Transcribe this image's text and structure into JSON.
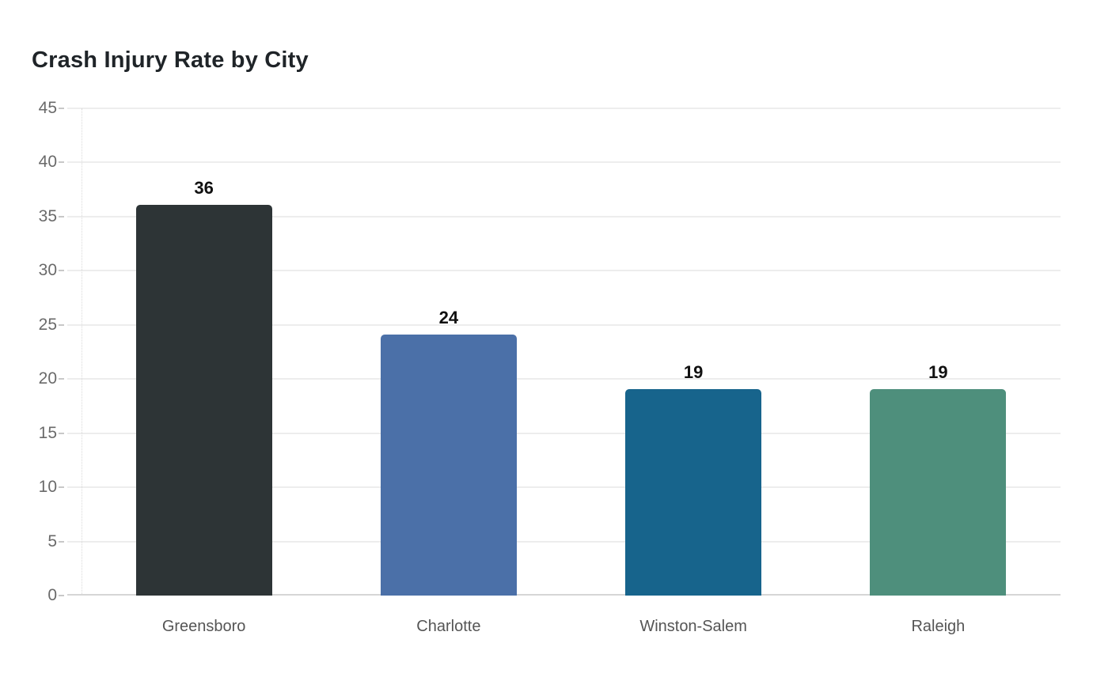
{
  "chart_data": {
    "type": "bar",
    "title": "Crash Injury Rate by City",
    "categories": [
      "Greensboro",
      "Charlotte",
      "Winston-Salem",
      "Raleigh"
    ],
    "values": [
      36,
      24,
      19,
      19
    ],
    "value_labels": [
      "36",
      "24",
      "19",
      "19"
    ],
    "bar_colors": [
      "#2d3436",
      "#4b70a8",
      "#17648c",
      "#4e8f7c"
    ],
    "y_ticks": [
      45,
      40,
      35,
      30,
      25,
      20,
      15,
      10,
      5,
      0
    ],
    "ylim": [
      0,
      45
    ],
    "xlabel": "",
    "ylabel": "",
    "grid": true,
    "legend": false,
    "style": {
      "background": "#ffffff",
      "title_color": "#1f2428",
      "value_label_color": "#111111",
      "tick_label_color": "#6a6a6a",
      "category_label_color": "#555555",
      "gridline_color": "#ededed",
      "axis_line_color": "#d6d6d6"
    }
  }
}
